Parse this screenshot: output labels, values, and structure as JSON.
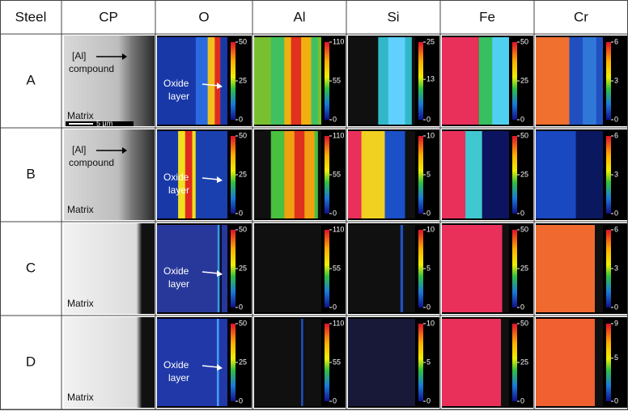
{
  "header": [
    "Steel",
    "CP",
    "O",
    "Al",
    "Si",
    "Fe",
    "Cr"
  ],
  "rows": [
    {
      "steel": "A",
      "cp": {
        "compound": [
          "[Al]",
          "compound"
        ],
        "matrix": "Matrix",
        "scale_bar": "5 μm"
      },
      "oxide": [
        "Oxide",
        "layer"
      ],
      "colorbar_ticks": [
        [
          50,
          25,
          0
        ],
        [
          110,
          55,
          0
        ],
        [
          25,
          13,
          0
        ],
        [
          50,
          25,
          0
        ],
        [
          6,
          3,
          0
        ]
      ]
    },
    {
      "steel": "B",
      "cp": {
        "compound": [
          "[Al]",
          "compound"
        ],
        "matrix": "Matrix"
      },
      "oxide": [
        "Oxide",
        "layer"
      ],
      "colorbar_ticks": [
        [
          50,
          25,
          0
        ],
        [
          110,
          55,
          0
        ],
        [
          10,
          5,
          0
        ],
        [
          50,
          25,
          0
        ],
        [
          6,
          3,
          0
        ]
      ]
    },
    {
      "steel": "C",
      "cp": {
        "matrix": "Matrix"
      },
      "oxide": [
        "Oxide",
        "layer"
      ],
      "colorbar_ticks": [
        [
          50,
          25,
          0
        ],
        [
          110,
          55,
          0
        ],
        [
          10,
          5,
          0
        ],
        [
          50,
          25,
          0
        ],
        [
          6,
          3,
          0
        ]
      ]
    },
    {
      "steel": "D",
      "cp": {
        "matrix": "Matrix"
      },
      "oxide": [
        "Oxide",
        "layer"
      ],
      "colorbar_ticks": [
        [
          50,
          25,
          0
        ],
        [
          110,
          55,
          0
        ],
        [
          10,
          5,
          0
        ],
        [
          50,
          25,
          0
        ],
        [
          9,
          5,
          0
        ]
      ]
    }
  ]
}
